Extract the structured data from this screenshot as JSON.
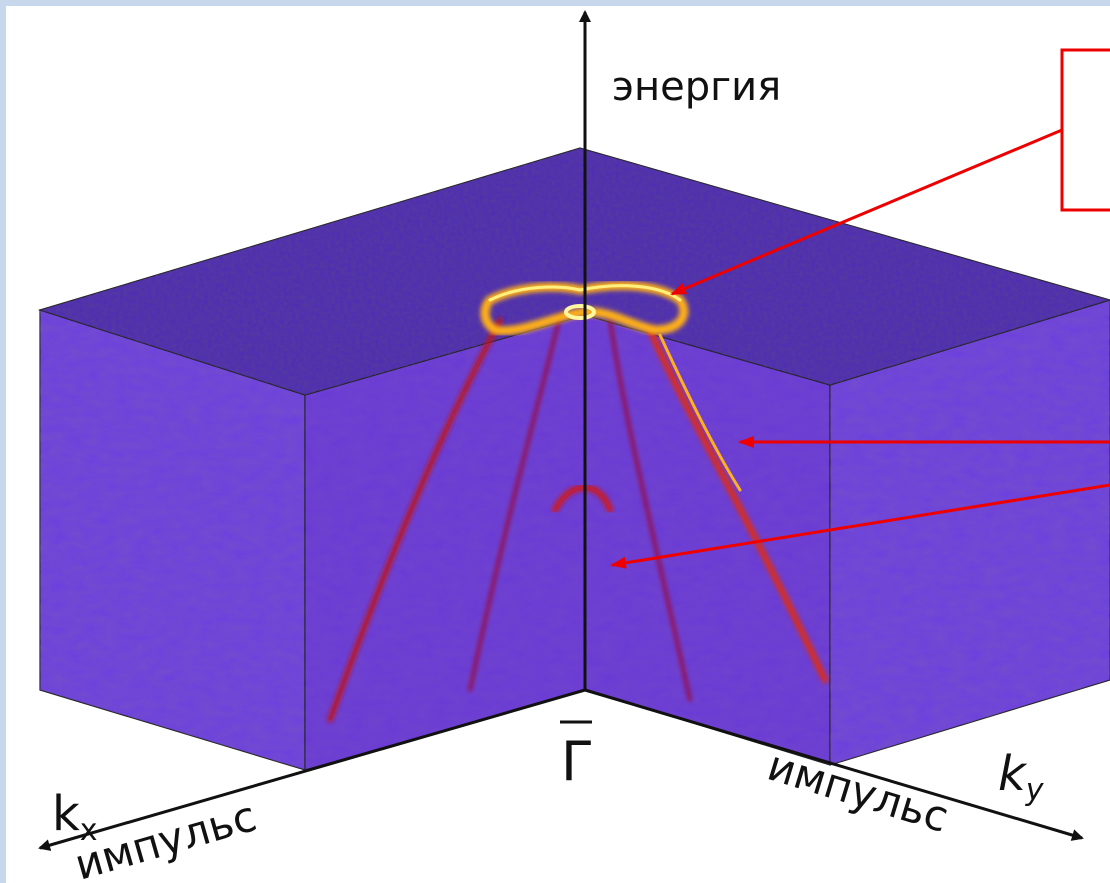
{
  "labels": {
    "energy": "энергия",
    "gamma": "Γ",
    "kx": {
      "symbol": "k",
      "subscript": "x"
    },
    "kx_momentum": "импульс",
    "ky": {
      "symbol": "k",
      "subscript": "y"
    },
    "ky_momentum": "импульс"
  }
}
